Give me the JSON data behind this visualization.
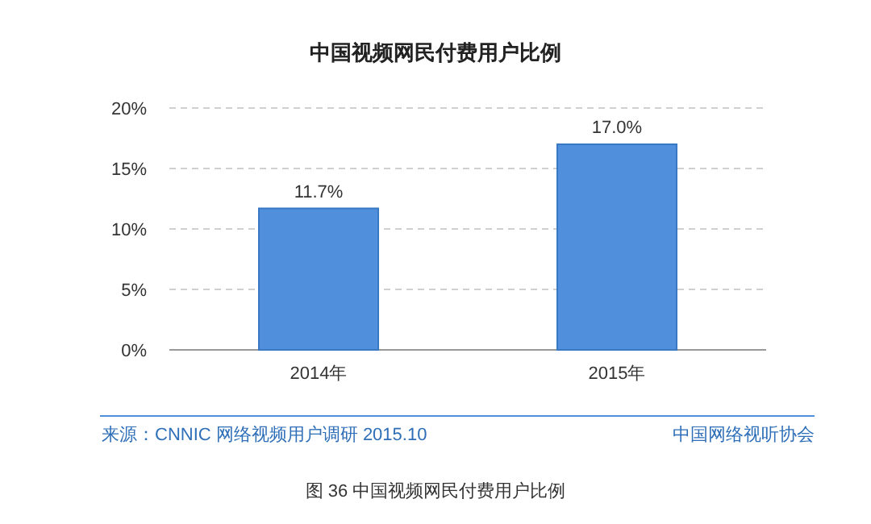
{
  "chart_data": {
    "type": "bar",
    "title": "中国视频网民付费用户比例",
    "categories": [
      "2014年",
      "2015年"
    ],
    "values": [
      11.7,
      17.0
    ],
    "value_labels": [
      "11.7%",
      "17.0%"
    ],
    "color": "#4f8fdc",
    "ylim": [
      0,
      20
    ],
    "yticks": [
      {
        "value": 0,
        "label": "0%"
      },
      {
        "value": 5,
        "label": "5%"
      },
      {
        "value": 10,
        "label": "10%"
      },
      {
        "value": 15,
        "label": "15%"
      },
      {
        "value": 20,
        "label": "20%"
      }
    ],
    "grid": "y",
    "annotations": [
      "来源：CNNIC 网络视频用户调研   2015.10",
      "中国网络视听协会",
      "图 36 中国视频网民付费用户比例"
    ]
  }
}
